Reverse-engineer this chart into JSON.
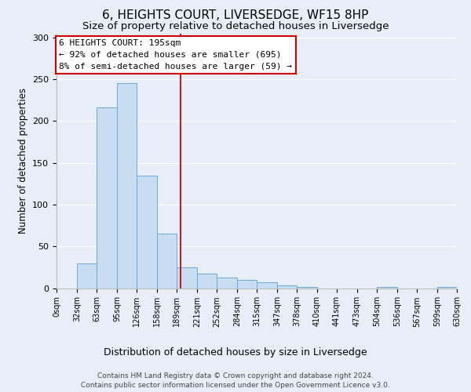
{
  "title": "6, HEIGHTS COURT, LIVERSEDGE, WF15 8HP",
  "subtitle": "Size of property relative to detached houses in Liversedge",
  "xlabel": "Distribution of detached houses by size in Liversedge",
  "ylabel": "Number of detached properties",
  "bin_edges": [
    0,
    32,
    63,
    95,
    126,
    158,
    189,
    221,
    252,
    284,
    315,
    347,
    378,
    410,
    441,
    473,
    504,
    536,
    567,
    599,
    630
  ],
  "bar_heights": [
    0,
    30,
    216,
    245,
    135,
    65,
    25,
    17,
    13,
    10,
    7,
    3,
    1,
    0,
    0,
    0,
    1,
    0,
    0,
    1
  ],
  "bar_color": "#c9ddf2",
  "bar_edge_color": "#6aaad4",
  "vline_x": 195,
  "vline_color": "#cc0000",
  "annotation_text": "6 HEIGHTS COURT: 195sqm\n← 92% of detached houses are smaller (695)\n8% of semi-detached houses are larger (59) →",
  "annotation_box_facecolor": "#ffffff",
  "annotation_box_edge_color": "#cc0000",
  "ylim": [
    0,
    305
  ],
  "tick_labels": [
    "0sqm",
    "32sqm",
    "63sqm",
    "95sqm",
    "126sqm",
    "158sqm",
    "189sqm",
    "221sqm",
    "252sqm",
    "284sqm",
    "315sqm",
    "347sqm",
    "378sqm",
    "410sqm",
    "441sqm",
    "473sqm",
    "504sqm",
    "536sqm",
    "567sqm",
    "599sqm",
    "630sqm"
  ],
  "footer_line1": "Contains HM Land Registry data © Crown copyright and database right 2024.",
  "footer_line2": "Contains public sector information licensed under the Open Government Licence v3.0.",
  "fig_facecolor": "#e8eef8",
  "plot_facecolor": "#e8eef8",
  "title_fontsize": 11,
  "subtitle_fontsize": 9.5,
  "xlabel_fontsize": 9,
  "ylabel_fontsize": 8.5,
  "tick_fontsize": 7,
  "footer_fontsize": 6.5,
  "annotation_fontsize": 8,
  "yticks": [
    0,
    50,
    100,
    150,
    200,
    250,
    300
  ]
}
